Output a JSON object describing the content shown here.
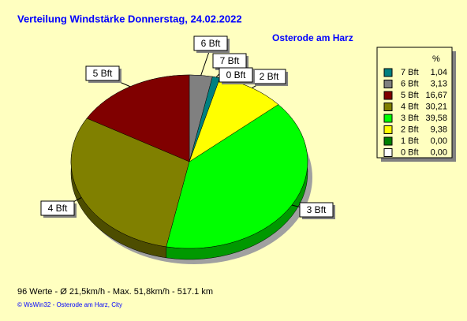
{
  "chart_data": {
    "type": "pie",
    "title": "Verteilung Windstärke  Donnerstag, 24.02.2022",
    "subtitle": "Osterode am Harz",
    "legend_header": "%",
    "categories": [
      "7 Bft",
      "6 Bft",
      "5 Bft",
      "4 Bft",
      "3 Bft",
      "2 Bft",
      "1 Bft",
      "0 Bft"
    ],
    "values": [
      1.04,
      3.13,
      16.67,
      30.21,
      39.58,
      9.38,
      0.0,
      0.0
    ],
    "value_labels": [
      "1,04",
      "3,13",
      "16,67",
      "30,21",
      "39,58",
      "9,38",
      "0,00",
      "0,00"
    ],
    "colors": [
      "#008080",
      "#808080",
      "#800000",
      "#808000",
      "#00ff00",
      "#ffff00",
      "#008000",
      "#ffffff"
    ],
    "footer": "96 Werte   -   Ø 21,5km/h   -   Max. 51,8km/h   -   517.1 km",
    "credit": "© WsWin32  -  Osterode am Harz, City"
  }
}
